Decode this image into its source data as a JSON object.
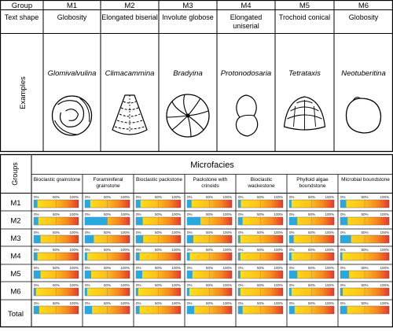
{
  "header": {
    "group_label": "Group",
    "text_shape_label": "Text shape",
    "examples_label": "Examples"
  },
  "groups": [
    {
      "code": "M1",
      "shape": "Globosity",
      "example": "Glomivalvulina",
      "icon": "globose-coiled-foram-icon"
    },
    {
      "code": "M2",
      "shape": "Elongated biserial",
      "example": "Climacammina",
      "icon": "biserial-conical-foram-icon"
    },
    {
      "code": "M3",
      "shape": "Involute globose",
      "example": "Bradyina",
      "icon": "involute-globose-foram-icon"
    },
    {
      "code": "M4",
      "shape": "Elongated uniserial",
      "example": "Protonodosaria",
      "icon": "uniserial-foram-icon"
    },
    {
      "code": "M5",
      "shape": "Trochoid conical",
      "example": "Tetrataxis",
      "icon": "trochoid-conical-foram-icon"
    },
    {
      "code": "M6",
      "shape": "Globosity",
      "example": "Neotuberitina",
      "icon": "globose-test-icon"
    }
  ],
  "lower": {
    "groups_label": "Groups",
    "title": "Microfacies",
    "microfacies": [
      "Bioclastic grainstone",
      "Foraminiferal grainstone",
      "Bioclastic packstone",
      "Packstone with crinoids",
      "Bioclastic wackestone",
      "Phylloid algae boundstone",
      "Microbial boundstone"
    ],
    "rows": [
      "M1",
      "M2",
      "M3",
      "M4",
      "M5",
      "M6",
      "Total"
    ],
    "tick_labels": [
      "0%",
      "50%",
      "100%"
    ],
    "colors": {
      "blue": "#29a8e0",
      "yellow": "#ffd21a",
      "orange": "#f5841f",
      "red": "#e8382b"
    },
    "bar_blue_fractions": [
      [
        0.08,
        0.12,
        0.1,
        0.1,
        0.06,
        0.05,
        0.12
      ],
      [
        0.1,
        0.5,
        0.15,
        0.3,
        0.1,
        0.18,
        0.15
      ],
      [
        0.15,
        0.2,
        0.16,
        0.14,
        0.05,
        0.1,
        0.22
      ],
      [
        0.08,
        0.05,
        0.08,
        0.06,
        0.05,
        0.05,
        0.04
      ],
      [
        0.15,
        0.14,
        0.14,
        0.12,
        0.05,
        0.18,
        0.18
      ],
      [
        0.05,
        0.05,
        0.05,
        0.05,
        0.05,
        0.05,
        0.05
      ],
      [
        0.12,
        0.16,
        0.08,
        0.16,
        0.1,
        0.12,
        0.14
      ]
    ]
  }
}
